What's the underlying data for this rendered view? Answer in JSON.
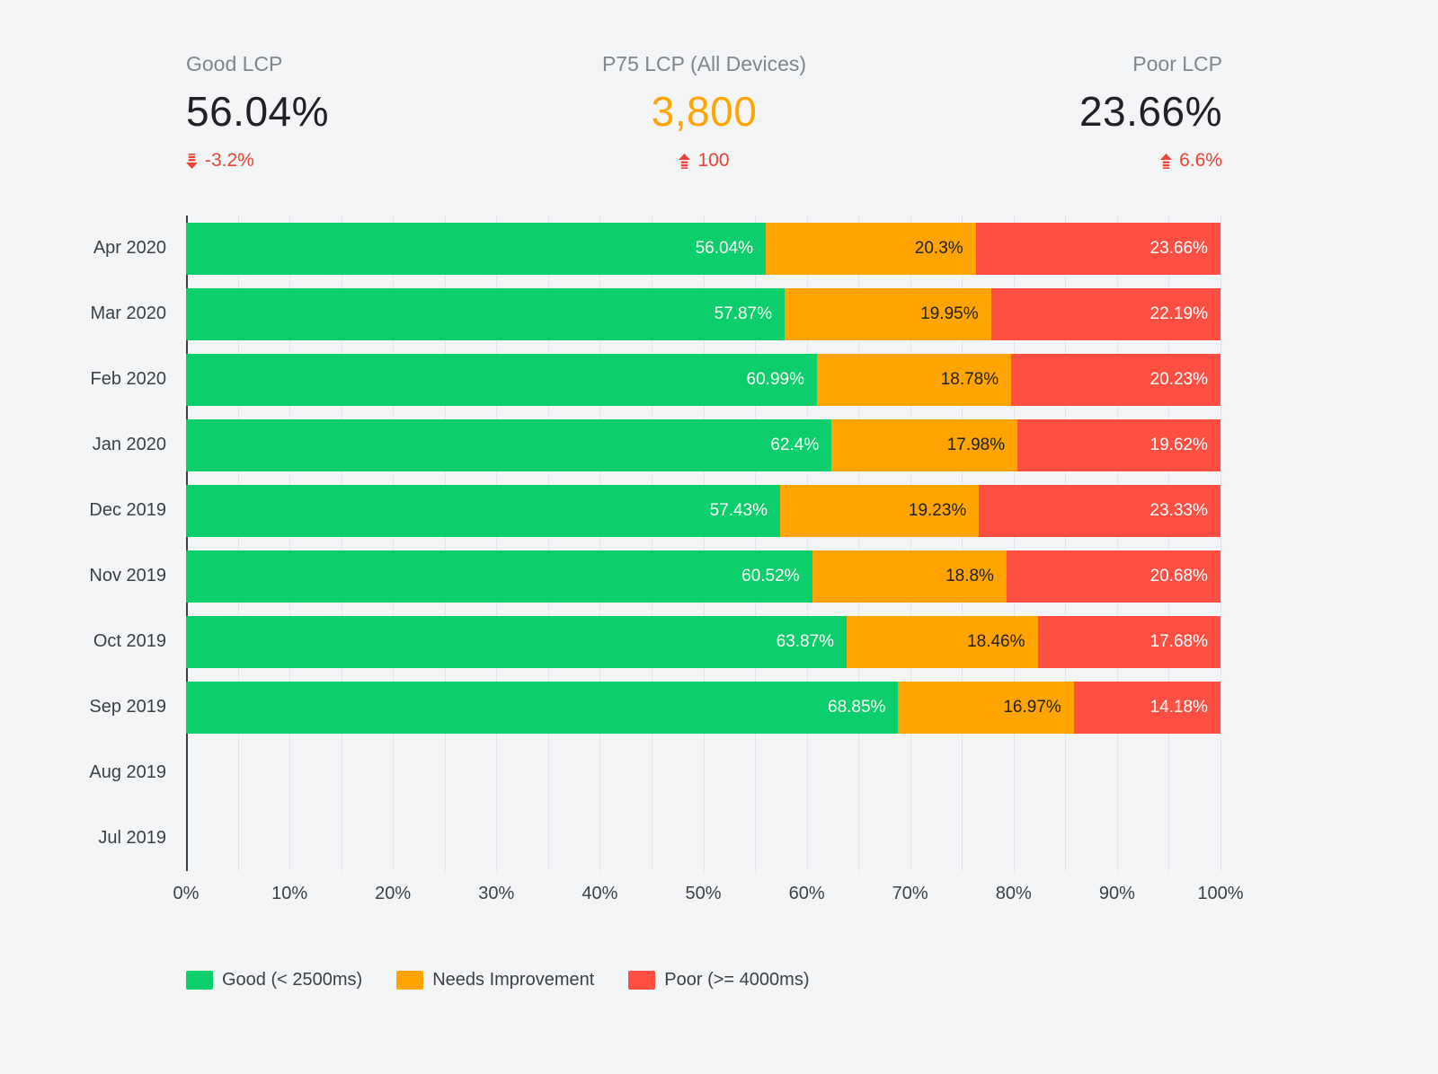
{
  "kpis": [
    {
      "label": "Good LCP",
      "value": "56.04%",
      "value_color": "#202124",
      "delta": "-3.2%",
      "direction": "down"
    },
    {
      "label": "P75 LCP (All Devices)",
      "value": "3,800",
      "value_color": "#FFA400",
      "delta": "100",
      "direction": "up"
    },
    {
      "label": "Poor LCP",
      "value": "23.66%",
      "value_color": "#202124",
      "delta": "6.6%",
      "direction": "up"
    }
  ],
  "chart_data": {
    "type": "bar",
    "orientation": "horizontal",
    "stacked": true,
    "grid": true,
    "legend_position": "bottom",
    "value_suffix": "%",
    "xlim": [
      0,
      100
    ],
    "x_ticks": [
      "0%",
      "10%",
      "20%",
      "30%",
      "40%",
      "50%",
      "60%",
      "70%",
      "80%",
      "90%",
      "100%"
    ],
    "categories": [
      "Apr 2020",
      "Mar 2020",
      "Feb 2020",
      "Jan 2020",
      "Dec 2019",
      "Nov 2019",
      "Oct 2019",
      "Sep 2019",
      "Aug 2019",
      "Jul 2019"
    ],
    "series": [
      {
        "name": "Good (< 2500ms)",
        "color": "#0CCE6B",
        "label_color": "#FFFFFF",
        "values": [
          56.04,
          57.87,
          60.99,
          62.4,
          57.43,
          60.52,
          63.87,
          68.85,
          null,
          null
        ]
      },
      {
        "name": "Needs Improvement",
        "color": "#FFA400",
        "label_color": "#212121",
        "values": [
          20.3,
          19.95,
          18.78,
          17.98,
          19.23,
          18.8,
          18.46,
          16.97,
          null,
          null
        ]
      },
      {
        "name": "Poor (>= 4000ms)",
        "color": "#FF4E42",
        "label_color": "#FFFFFF",
        "values": [
          23.66,
          22.19,
          20.23,
          19.62,
          23.33,
          20.68,
          17.68,
          14.18,
          null,
          null
        ]
      }
    ]
  },
  "legend": [
    {
      "label": "Good (< 2500ms)",
      "color": "#0CCE6B"
    },
    {
      "label": "Needs Improvement",
      "color": "#FFA400"
    },
    {
      "label": "Poor (>= 4000ms)",
      "color": "#FF4E42"
    }
  ]
}
